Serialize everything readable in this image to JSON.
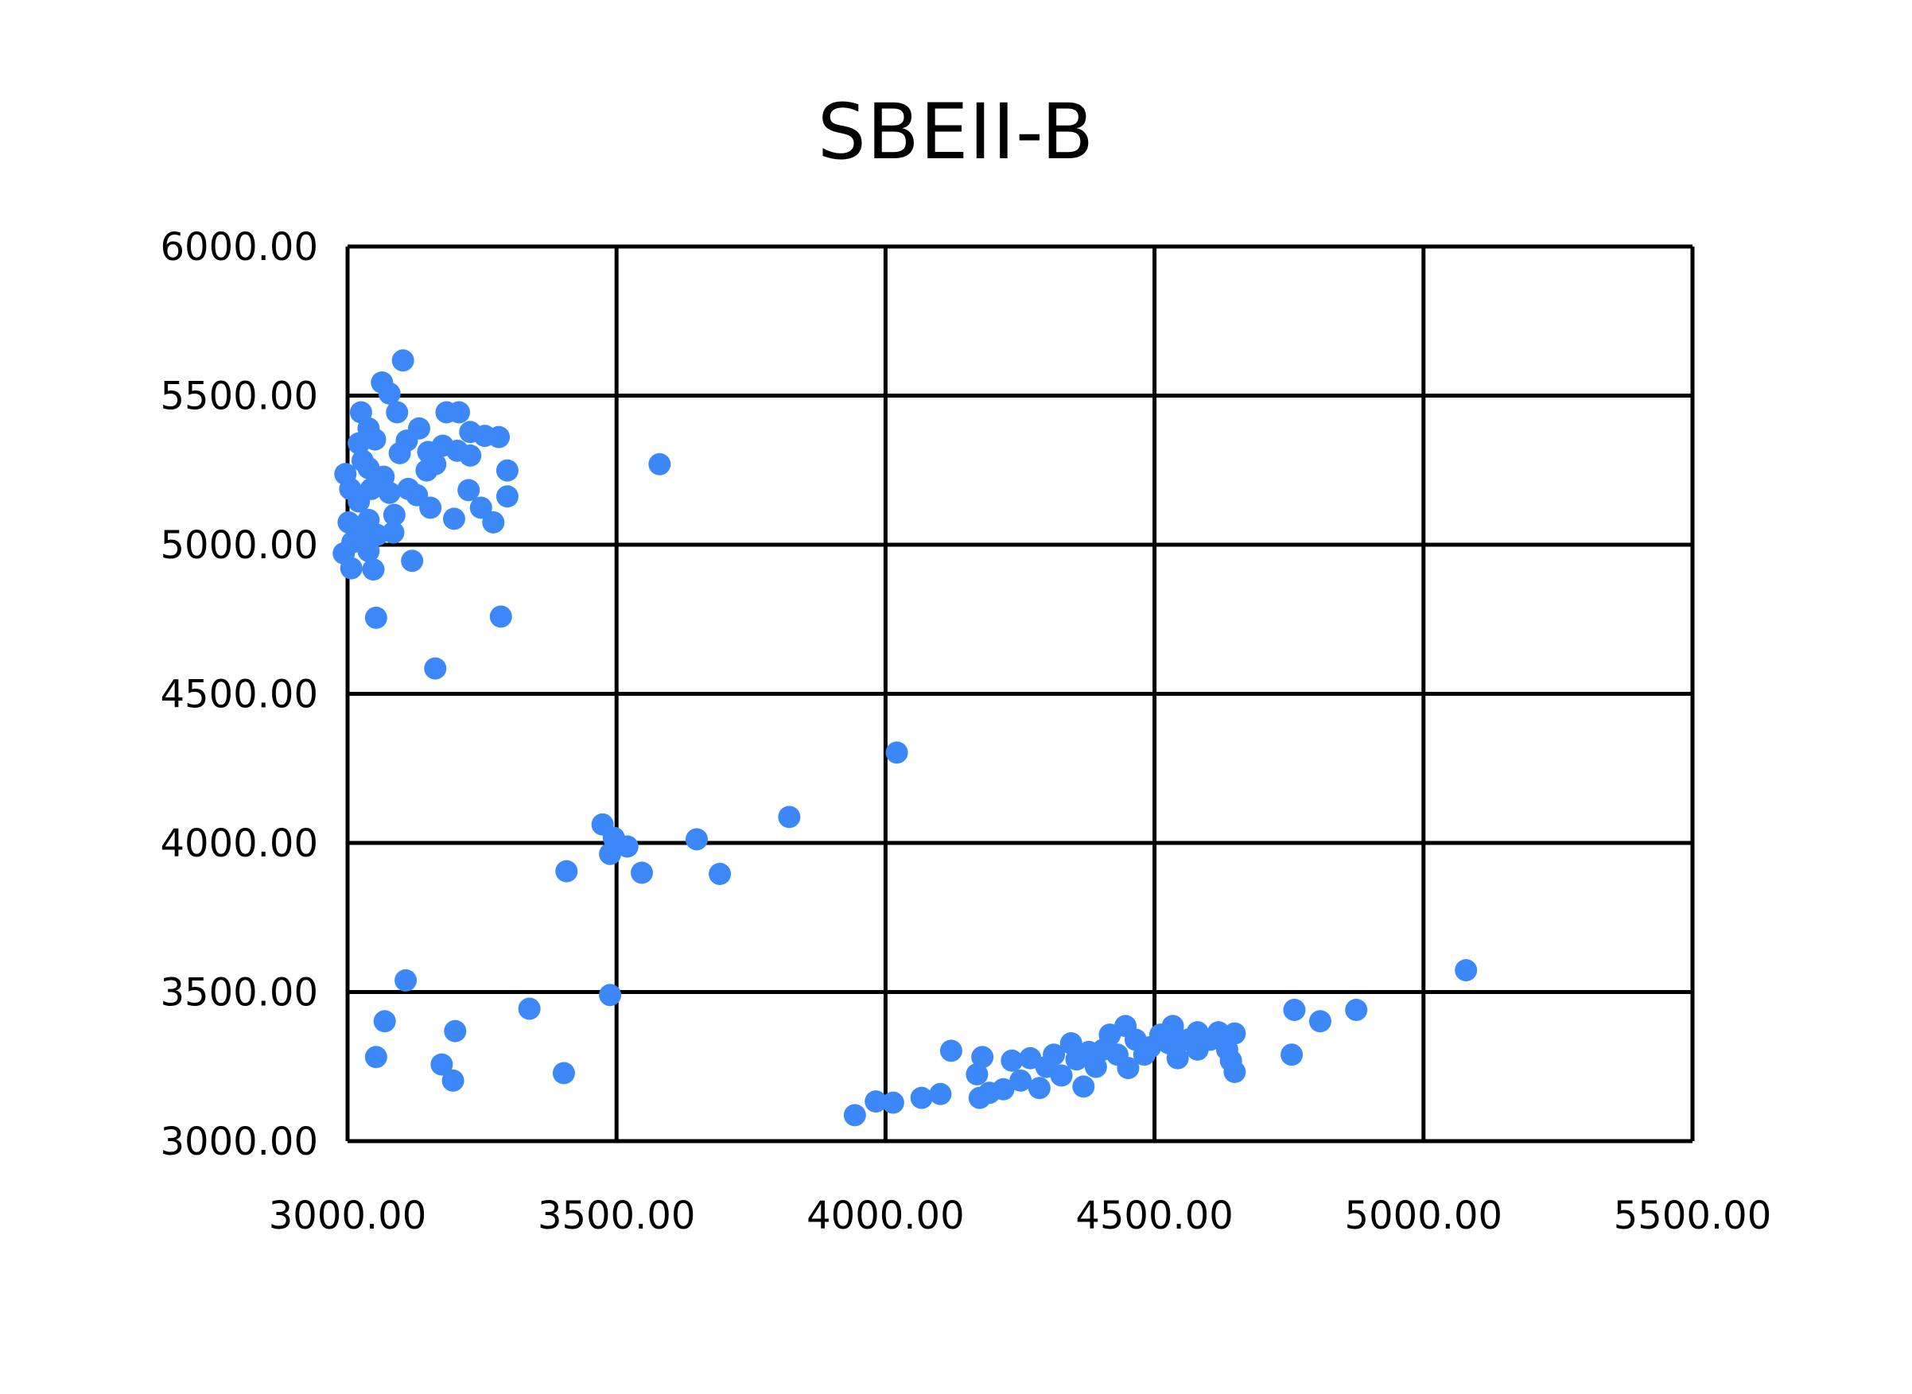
{
  "chart_data": {
    "type": "scatter",
    "title": "SBEII-B",
    "xlabel": "",
    "ylabel": "",
    "xlim": [
      3000,
      5500
    ],
    "ylim": [
      3000,
      6000
    ],
    "x_ticks": [
      "3000.00",
      "3500.00",
      "4000.00",
      "4500.00",
      "5000.00",
      "5500.00"
    ],
    "y_ticks": [
      "6000.00",
      "5500.00",
      "5000.00",
      "4500.00",
      "4000.00",
      "3500.00",
      "3000.00"
    ],
    "grid": true,
    "legend": null,
    "marker_color": "#3d88f9",
    "series": [
      {
        "name": "SBEII-B",
        "points": [
          [
            3103,
            5618
          ],
          [
            3064,
            5544
          ],
          [
            3078,
            5507
          ],
          [
            3025,
            5444
          ],
          [
            3092,
            5444
          ],
          [
            3184,
            5444
          ],
          [
            3207,
            5444
          ],
          [
            3039,
            5390
          ],
          [
            3133,
            5390
          ],
          [
            3021,
            5340
          ],
          [
            3051,
            5353
          ],
          [
            3110,
            5349
          ],
          [
            3228,
            5378
          ],
          [
            3255,
            5365
          ],
          [
            3281,
            5361
          ],
          [
            3097,
            5307
          ],
          [
            3150,
            5311
          ],
          [
            3177,
            5332
          ],
          [
            3204,
            5315
          ],
          [
            3228,
            5299
          ],
          [
            3028,
            5282
          ],
          [
            2996,
            5237
          ],
          [
            3297,
            5249
          ],
          [
            3039,
            5257
          ],
          [
            3067,
            5228
          ],
          [
            3147,
            5249
          ],
          [
            3163,
            5270
          ],
          [
            3005,
            5187
          ],
          [
            3021,
            5145
          ],
          [
            3044,
            5187
          ],
          [
            3078,
            5174
          ],
          [
            3113,
            5187
          ],
          [
            3129,
            5166
          ],
          [
            3154,
            5124
          ],
          [
            3225,
            5183
          ],
          [
            3248,
            5124
          ],
          [
            3297,
            5162
          ],
          [
            3002,
            5075
          ],
          [
            3039,
            5083
          ],
          [
            3087,
            5100
          ],
          [
            3198,
            5087
          ],
          [
            3271,
            5075
          ],
          [
            3021,
            5033
          ],
          [
            3085,
            5041
          ],
          [
            3055,
            5033
          ],
          [
            2993,
            4971
          ],
          [
            3009,
            5008
          ],
          [
            3039,
            4979
          ],
          [
            3007,
            4921
          ],
          [
            3048,
            4917
          ],
          [
            3120,
            4946
          ],
          [
            3053,
            4755
          ],
          [
            3285,
            4759
          ],
          [
            3163,
            4585
          ],
          [
            3580,
            5270
          ],
          [
            4021,
            4303
          ],
          [
            3821,
            4087
          ],
          [
            3474,
            4062
          ],
          [
            3495,
            4017
          ],
          [
            3520,
            3988
          ],
          [
            3488,
            3963
          ],
          [
            3649,
            4012
          ],
          [
            3407,
            3905
          ],
          [
            3547,
            3900
          ],
          [
            3692,
            3896
          ],
          [
            3108,
            3539
          ],
          [
            3488,
            3490
          ],
          [
            3069,
            3402
          ],
          [
            3338,
            3444
          ],
          [
            3200,
            3369
          ],
          [
            3053,
            3282
          ],
          [
            3175,
            3257
          ],
          [
            3196,
            3203
          ],
          [
            3402,
            3228
          ],
          [
            5079,
            3573
          ],
          [
            4760,
            3440
          ],
          [
            4808,
            3402
          ],
          [
            4875,
            3440
          ],
          [
            4755,
            3290
          ],
          [
            3943,
            3087
          ],
          [
            3982,
            3133
          ],
          [
            4014,
            3129
          ],
          [
            4067,
            3145
          ],
          [
            4102,
            3158
          ],
          [
            4122,
            3303
          ],
          [
            4170,
            3224
          ],
          [
            4180,
            3282
          ],
          [
            4175,
            3145
          ],
          [
            4193,
            3162
          ],
          [
            4219,
            3174
          ],
          [
            4235,
            3270
          ],
          [
            4251,
            3203
          ],
          [
            4269,
            3278
          ],
          [
            4286,
            3178
          ],
          [
            4299,
            3249
          ],
          [
            4313,
            3290
          ],
          [
            4327,
            3220
          ],
          [
            4345,
            3328
          ],
          [
            4355,
            3274
          ],
          [
            4368,
            3183
          ],
          [
            4378,
            3299
          ],
          [
            4391,
            3249
          ],
          [
            4405,
            3307
          ],
          [
            4417,
            3357
          ],
          [
            4431,
            3290
          ],
          [
            4446,
            3386
          ],
          [
            4451,
            3245
          ],
          [
            4465,
            3340
          ],
          [
            4481,
            3290
          ],
          [
            4492,
            3315
          ],
          [
            4511,
            3357
          ],
          [
            4527,
            3328
          ],
          [
            4534,
            3386
          ],
          [
            4543,
            3278
          ],
          [
            4562,
            3340
          ],
          [
            4580,
            3365
          ],
          [
            4580,
            3307
          ],
          [
            4603,
            3340
          ],
          [
            4619,
            3365
          ],
          [
            4635,
            3307
          ],
          [
            4642,
            3270
          ],
          [
            4649,
            3361
          ],
          [
            4649,
            3232
          ]
        ]
      }
    ]
  }
}
